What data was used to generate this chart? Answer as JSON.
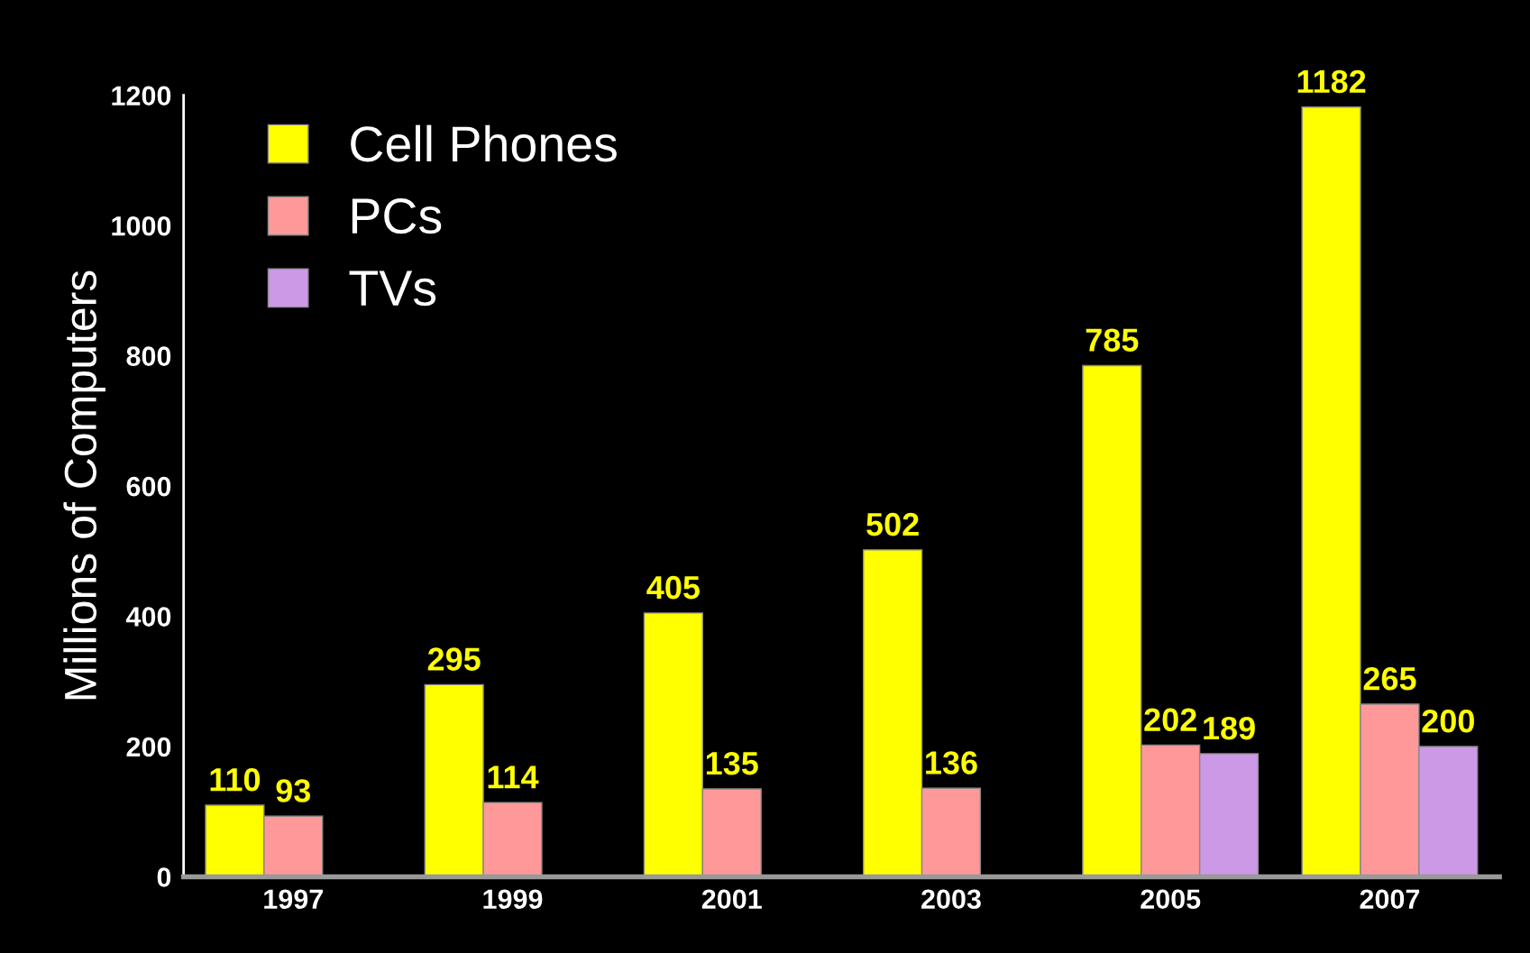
{
  "chart_data": {
    "type": "bar",
    "categories": [
      "1997",
      "1999",
      "2001",
      "2003",
      "2005",
      "2007"
    ],
    "ylabel": "Millions of Computers",
    "series": [
      {
        "name": "Cell Phones",
        "color": "#ffff00",
        "values": [
          110,
          295,
          405,
          502,
          785,
          1182
        ]
      },
      {
        "name": "PCs",
        "color": "#ff9999",
        "values": [
          93,
          114,
          135,
          136,
          202,
          265
        ]
      },
      {
        "name": "TVs",
        "color": "#cc99e6",
        "values": [
          null,
          null,
          null,
          null,
          189,
          200
        ]
      }
    ],
    "ylim": [
      0,
      1200
    ],
    "yticks": [
      0,
      200,
      400,
      600,
      800,
      1000,
      1200
    ],
    "data_labels": true,
    "legend": "top left",
    "grid": false
  }
}
